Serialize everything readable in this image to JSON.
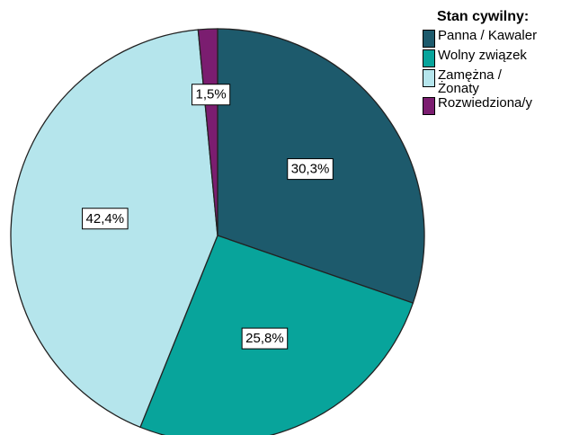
{
  "chart_data": {
    "type": "pie",
    "legend_title": "Stan cywilny:",
    "categories": [
      "Panna / Kawaler",
      "Wolny związek",
      "Zamężna / Żonaty",
      "Rozwiedziona/y"
    ],
    "values": [
      30.3,
      25.8,
      42.4,
      1.5
    ],
    "value_labels": [
      "30,3%",
      "25,8%",
      "42,4%",
      "1,5%"
    ],
    "colors": [
      "#1d5a6c",
      "#08a49b",
      "#b5e5ec",
      "#7b1d70"
    ],
    "legend": "right"
  }
}
